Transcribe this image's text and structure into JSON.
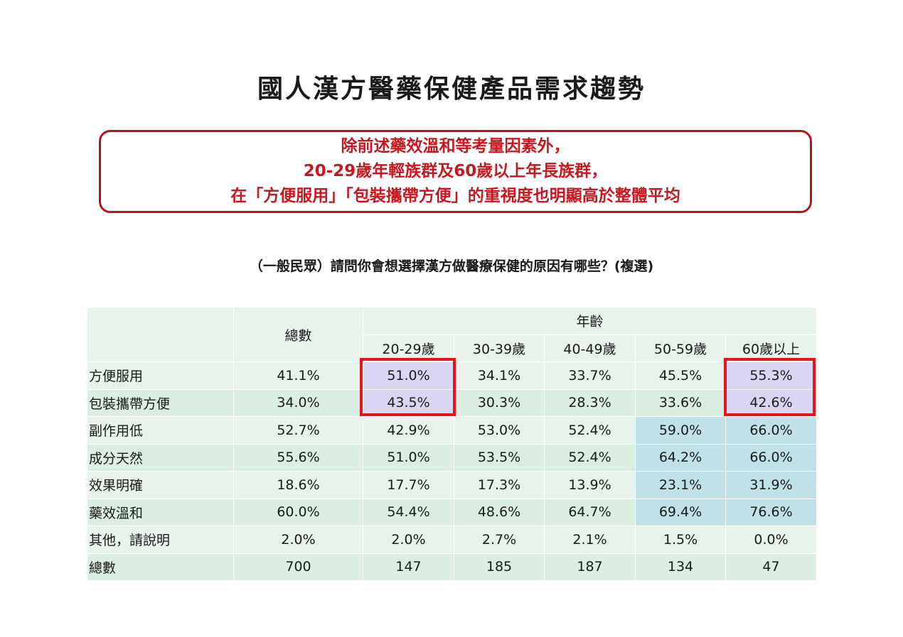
{
  "title": "國人漢方醫藥保健產品需求趨勢",
  "callout": {
    "lines": [
      "除前述藥效溫和等考量因素外，",
      "20-29歲年輕族群及60歲以上年長族群，",
      "在「方便服用」「包裝攜帶方便」的重視度也明顯高於整體平均"
    ]
  },
  "question": "（一般民眾）請問你會想選擇漢方做醫療保健的原因有哪些？(複選)",
  "table": {
    "total_header": "總數",
    "age_header": "年齡",
    "age_groups": [
      "20-29歲",
      "30-39歲",
      "40-49歲",
      "50-59歲",
      "60歲以上"
    ],
    "rows": [
      {
        "label": "方便服用",
        "total": "41.1%",
        "values": [
          "51.0%",
          "34.1%",
          "33.7%",
          "45.5%",
          "55.3%"
        ]
      },
      {
        "label": "包裝攜帶方便",
        "total": "34.0%",
        "values": [
          "43.5%",
          "30.3%",
          "28.3%",
          "33.6%",
          "42.6%"
        ]
      },
      {
        "label": "副作用低",
        "total": "52.7%",
        "values": [
          "42.9%",
          "53.0%",
          "52.4%",
          "59.0%",
          "66.0%"
        ]
      },
      {
        "label": "成分天然",
        "total": "55.6%",
        "values": [
          "51.0%",
          "53.5%",
          "52.4%",
          "64.2%",
          "66.0%"
        ]
      },
      {
        "label": "效果明確",
        "total": "18.6%",
        "values": [
          "17.7%",
          "17.3%",
          "13.9%",
          "23.1%",
          "31.9%"
        ]
      },
      {
        "label": "藥效溫和",
        "total": "60.0%",
        "values": [
          "54.4%",
          "48.6%",
          "64.7%",
          "69.4%",
          "76.6%"
        ]
      },
      {
        "label": "其他，請說明",
        "total": "2.0%",
        "values": [
          "2.0%",
          "2.7%",
          "2.1%",
          "1.5%",
          "0.0%"
        ]
      },
      {
        "label": "總數",
        "total": "700",
        "values": [
          "147",
          "185",
          "187",
          "134",
          "47"
        ]
      }
    ]
  },
  "colors": {
    "callout_border": "#b3171d",
    "callout_text": "#c8171e",
    "highlight_box": "#e8141c",
    "highlight_purple": "#d8d6f3",
    "highlight_blue": "#bfe1e7",
    "row_light": "#e8f3ec",
    "row_dark": "#dbeee1"
  }
}
